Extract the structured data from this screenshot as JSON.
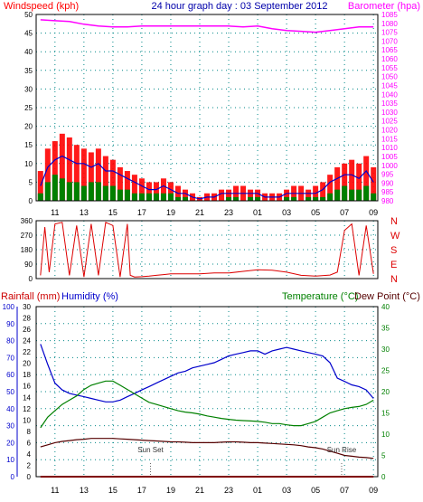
{
  "header": {
    "left_label": "Windspeed (kph)",
    "title": "24 hour graph day : 03 September 2012",
    "right_label": "Barometer (hpa)"
  },
  "lower_header": {
    "rain_label": "Rainfall (mm)",
    "humidity_label": "Humidity (%)",
    "temp_label": "Temperature (°C)",
    "dew_label": "Dew Point (°C)"
  },
  "colors": {
    "wind": "#ff0000",
    "gust": "#ff0000",
    "average": "#0000cc",
    "calm": "#008000",
    "barometer": "#ff00ff",
    "direction": "#dd0000",
    "humidity": "#0000cc",
    "temperature": "#008000",
    "dewpoint": "#550000",
    "rain": "#ff0000",
    "rain_axis": "#0000cc",
    "temp_axis": "#008000",
    "grid": "#008888"
  },
  "chart_data": [
    {
      "type": "line",
      "name": "wind-barometer",
      "title": "24 hour graph day : 03 September 2012",
      "time_labels": [
        "11",
        "13",
        "15",
        "17",
        "19",
        "21",
        "23",
        "01",
        "03",
        "05",
        "07",
        "09"
      ],
      "time_positions": [
        1,
        3,
        5,
        7,
        9,
        11,
        13,
        15,
        17,
        19,
        21,
        23
      ],
      "xlim": [
        -0.3,
        23.3
      ],
      "ylabel_left": "Windspeed (kph)",
      "ylim_left": [
        0,
        50
      ],
      "yticks_left": [
        0,
        5,
        10,
        15,
        20,
        25,
        30,
        35,
        40,
        45,
        50
      ],
      "ylabel_right": "Barometer (hpa)",
      "ylim_right": [
        980,
        1085
      ],
      "yticks_right": [
        980,
        985,
        990,
        995,
        1000,
        1005,
        1010,
        1015,
        1020,
        1025,
        1030,
        1035,
        1040,
        1045,
        1050,
        1055,
        1060,
        1065,
        1070,
        1075,
        1080,
        1085
      ],
      "series": [
        {
          "name": "Windspeed",
          "x": [
            0,
            0.5,
            1,
            1.5,
            2,
            2.5,
            3,
            3.5,
            4,
            4.5,
            5,
            5.5,
            6,
            6.5,
            7,
            7.5,
            8,
            8.5,
            9,
            9.5,
            10,
            10.5,
            11,
            11.5,
            12,
            12.5,
            13,
            13.5,
            14,
            14.5,
            15,
            15.5,
            16,
            16.5,
            17,
            17.5,
            18,
            18.5,
            19,
            19.5,
            20,
            20.5,
            21,
            21.5,
            22,
            22.5,
            23
          ],
          "values": [
            8,
            14,
            16,
            18,
            17,
            15,
            14,
            13,
            14,
            12,
            11,
            9,
            8,
            7,
            6,
            5,
            5,
            6,
            5,
            4,
            3,
            2,
            1,
            2,
            2,
            3,
            3,
            4,
            4,
            3,
            3,
            2,
            2,
            2,
            3,
            4,
            4,
            3,
            4,
            5,
            7,
            9,
            10,
            11,
            10,
            12,
            9
          ]
        },
        {
          "name": "Average",
          "x": [
            0,
            0.5,
            1,
            1.5,
            2,
            2.5,
            3,
            3.5,
            4,
            4.5,
            5,
            5.5,
            6,
            6.5,
            7,
            7.5,
            8,
            8.5,
            9,
            9.5,
            10,
            10.5,
            11,
            11.5,
            12,
            12.5,
            13,
            13.5,
            14,
            14.5,
            15,
            15.5,
            16,
            16.5,
            17,
            17.5,
            18,
            18.5,
            19,
            19.5,
            20,
            20.5,
            21,
            21.5,
            22,
            22.5,
            23
          ],
          "values": [
            4,
            9,
            11,
            12,
            11,
            10,
            10,
            9,
            10,
            8,
            8,
            7,
            6,
            5,
            4,
            3,
            3,
            4,
            3,
            2,
            2,
            1,
            0.5,
            1,
            1,
            2,
            2,
            2,
            2,
            2,
            2,
            1,
            1,
            1,
            2,
            2,
            2,
            2,
            2,
            3,
            5,
            6,
            7,
            7,
            6,
            8,
            5
          ]
        },
        {
          "name": "Calm",
          "x": [
            0,
            0.5,
            1,
            1.5,
            2,
            2.5,
            3,
            3.5,
            4,
            4.5,
            5,
            5.5,
            6,
            6.5,
            7,
            7.5,
            8,
            8.5,
            9,
            9.5,
            10,
            10.5,
            11,
            11.5,
            12,
            12.5,
            13,
            13.5,
            14,
            14.5,
            15,
            15.5,
            16,
            16.5,
            17,
            17.5,
            18,
            18.5,
            19,
            19.5,
            20,
            20.5,
            21,
            21.5,
            22,
            22.5,
            23
          ],
          "values": [
            2,
            5,
            7,
            6,
            5,
            5,
            4,
            5,
            5,
            4,
            4,
            3,
            3,
            2,
            2,
            2,
            2,
            2,
            2,
            1,
            1,
            0,
            0,
            0,
            0,
            0,
            1,
            1,
            0,
            1,
            1,
            0,
            0,
            0,
            1,
            1,
            0,
            1,
            1,
            1,
            2,
            3,
            4,
            3,
            3,
            4,
            2
          ]
        },
        {
          "name": "Barometer",
          "x": [
            0,
            1,
            2,
            3,
            4,
            5,
            6,
            7,
            8,
            9,
            10,
            11,
            12,
            13,
            14,
            15,
            16,
            17,
            18,
            19,
            20,
            21,
            22,
            23
          ],
          "values": [
            1082,
            1081.5,
            1081,
            1079.5,
            1078.5,
            1078,
            1078,
            1078.5,
            1078.5,
            1078.5,
            1078.5,
            1078.5,
            1078.5,
            1078.5,
            1078,
            1078.5,
            1077,
            1076,
            1075.5,
            1075,
            1076,
            1077,
            1078,
            1078
          ]
        }
      ]
    },
    {
      "type": "scatter",
      "name": "wind-direction",
      "ylim": [
        0,
        360
      ],
      "yticks": [
        0,
        90,
        180,
        270,
        360
      ],
      "compass_labels": [
        "N",
        "W",
        "S",
        "E",
        "N"
      ],
      "series": [
        {
          "name": "Direction",
          "x": [
            0,
            0.3,
            0.6,
            1,
            1.5,
            2,
            2.5,
            3,
            3.5,
            4,
            4.5,
            5,
            5.5,
            6,
            6.2,
            6.5,
            7,
            7.5,
            8,
            8.5,
            9,
            10,
            11,
            12,
            13,
            14,
            15,
            16,
            17,
            18,
            19,
            20,
            20.5,
            21,
            21.5,
            22,
            22.5,
            23
          ],
          "values": [
            20,
            320,
            40,
            340,
            350,
            20,
            330,
            10,
            340,
            20,
            350,
            330,
            10,
            340,
            20,
            10,
            12,
            15,
            20,
            25,
            30,
            30,
            30,
            35,
            35,
            45,
            55,
            52,
            40,
            20,
            15,
            22,
            40,
            300,
            340,
            20,
            330,
            30
          ]
        }
      ]
    },
    {
      "type": "line",
      "name": "temp-humidity",
      "ylabel_left": "Humidity (%)",
      "ylim_humidity": [
        0,
        100
      ],
      "yticks_humidity": [
        0,
        10,
        20,
        30,
        40,
        50,
        60,
        70,
        80,
        90,
        100
      ],
      "ylabel_rain": "Rainfall (mm)",
      "ylim_rain": [
        0,
        30
      ],
      "yticks_rain": [
        0,
        2,
        4,
        6,
        8,
        10,
        12,
        14,
        16,
        18,
        20,
        22,
        24,
        26,
        28,
        30
      ],
      "ylabel_right": "Temperature (°C)",
      "ylim_temp": [
        0,
        40
      ],
      "yticks_temp": [
        0,
        5,
        10,
        15,
        20,
        25,
        30,
        35,
        40
      ],
      "annotations": [
        {
          "text": "Sun Set",
          "x": 7.6
        },
        {
          "text": "Sun Rise",
          "x": 20.8
        }
      ],
      "series": [
        {
          "name": "Humidity",
          "x": [
            0,
            0.5,
            1,
            1.5,
            2,
            2.5,
            3,
            3.5,
            4,
            4.5,
            5,
            5.5,
            6,
            6.5,
            7,
            7.5,
            8,
            8.5,
            9,
            9.5,
            10,
            10.5,
            11,
            11.5,
            12,
            12.5,
            13,
            13.5,
            14,
            14.5,
            15,
            15.5,
            16,
            16.5,
            17,
            17.5,
            18,
            18.5,
            19,
            19.5,
            20,
            20.5,
            21,
            21.5,
            22,
            22.5,
            23
          ],
          "values": [
            78,
            66,
            55,
            51,
            49,
            48,
            47,
            46,
            45,
            44,
            44,
            45,
            47,
            49,
            51,
            53,
            55,
            57,
            59,
            61,
            62,
            64,
            65,
            66,
            67,
            69,
            71,
            72,
            73,
            74,
            74,
            72,
            74,
            75,
            76,
            75,
            74,
            73,
            72,
            71,
            67,
            58,
            56,
            54,
            53,
            51,
            46
          ]
        },
        {
          "name": "Temperature",
          "x": [
            0,
            0.5,
            1,
            1.5,
            2,
            2.5,
            3,
            3.5,
            4,
            4.5,
            5,
            5.5,
            6,
            6.5,
            7,
            7.5,
            8,
            8.5,
            9,
            9.5,
            10,
            10.5,
            11,
            11.5,
            12,
            12.5,
            13,
            13.5,
            14,
            14.5,
            15,
            15.5,
            16,
            16.5,
            17,
            17.5,
            18,
            18.5,
            19,
            19.5,
            20,
            20.5,
            21,
            21.5,
            22,
            22.5,
            23
          ],
          "values": [
            11.5,
            14,
            15.5,
            17,
            18,
            19,
            20.5,
            21.5,
            22,
            22.5,
            22.5,
            21.5,
            20.5,
            19.5,
            18.5,
            17.5,
            17,
            16.5,
            16,
            15.5,
            15.2,
            15,
            14.7,
            14.3,
            14,
            13.7,
            13.5,
            13.3,
            13.2,
            13.1,
            13,
            12.8,
            12.5,
            12.5,
            12.2,
            12,
            12,
            12.5,
            13,
            14,
            15,
            15.5,
            16,
            16.3,
            16.5,
            17,
            18
          ]
        },
        {
          "name": "Dew Point",
          "x": [
            0,
            0.5,
            1,
            1.5,
            2,
            2.5,
            3,
            3.5,
            4,
            4.5,
            5,
            5.5,
            6,
            6.5,
            7,
            7.5,
            8,
            8.5,
            9,
            9.5,
            10,
            10.5,
            11,
            11.5,
            12,
            12.5,
            13,
            13.5,
            14,
            14.5,
            15,
            15.5,
            16,
            16.5,
            17,
            17.5,
            18,
            18.5,
            19,
            19.5,
            20,
            20.5,
            21,
            21.5,
            22,
            22.5,
            23
          ],
          "values": [
            7,
            7.5,
            8,
            8.3,
            8.5,
            8.7,
            8.8,
            9,
            9,
            9,
            9,
            8.9,
            8.8,
            8.7,
            8.6,
            8.5,
            8.4,
            8.3,
            8.2,
            8.2,
            8.1,
            8,
            8,
            8,
            8,
            8.1,
            8.2,
            8.2,
            8.1,
            8,
            8,
            7.9,
            7.8,
            7.7,
            7.6,
            7.5,
            7.3,
            7,
            6.8,
            6.5,
            6,
            5.5,
            5,
            4.8,
            4.6,
            4.5,
            4.3
          ]
        },
        {
          "name": "Rainfall",
          "x": [
            0,
            23
          ],
          "values": [
            0,
            0
          ]
        }
      ]
    }
  ]
}
